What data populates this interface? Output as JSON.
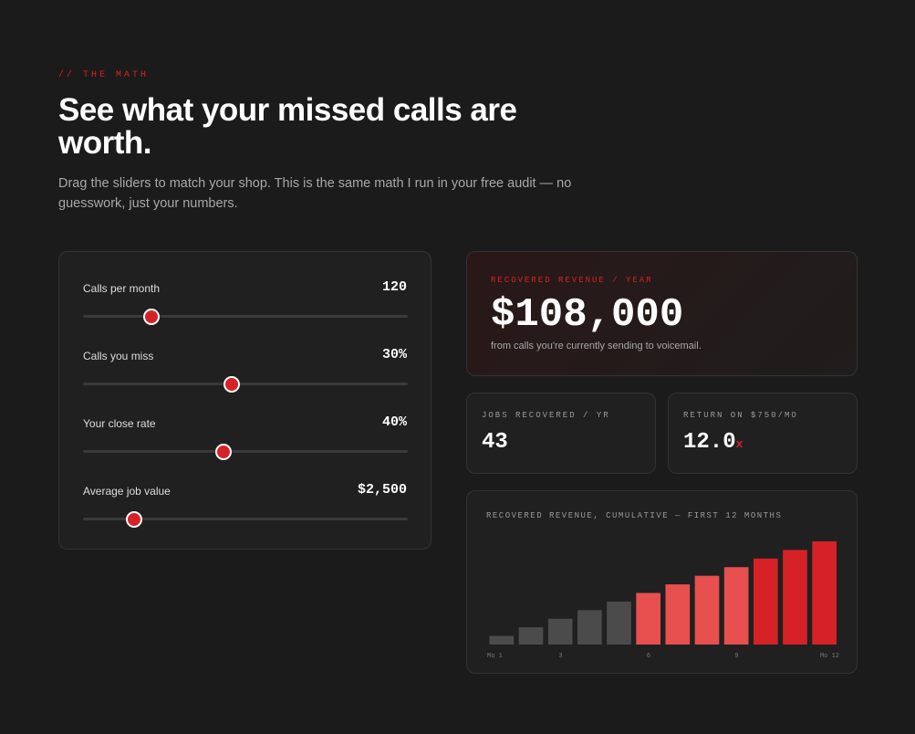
{
  "header": {
    "eyebrow": "// THE MATH",
    "title": "See what your missed calls are worth.",
    "subtitle": "Drag the sliders to match your shop. This is the same math I run in your free audit — no guesswork, just your numbers."
  },
  "sliders": [
    {
      "label": "Calls per month",
      "value": 120,
      "value_label": "120",
      "range": [
        20,
        500
      ]
    },
    {
      "label": "Calls you miss",
      "value": 30,
      "value_label": "30%",
      "range": [
        5,
        60
      ]
    },
    {
      "label": "Your close rate",
      "value": 40,
      "value_label": "40%",
      "range": [
        10,
        80
      ]
    },
    {
      "label": "Average job value",
      "value": 2500,
      "value_label": "$2,500",
      "range": [
        500,
        13500
      ]
    }
  ],
  "revenue": {
    "label": "RECOVERED REVENUE / YEAR",
    "value": "$108,000",
    "note": "from calls you're currently sending to voicemail."
  },
  "jobs": {
    "label": "JOBS RECOVERED / YR",
    "value": "43"
  },
  "roi": {
    "label": "RETURN ON $750/MO",
    "value": "12.0",
    "unit": "x"
  },
  "chart_data": {
    "type": "bar",
    "title": "RECOVERED REVENUE, CUMULATIVE — FIRST 12 MONTHS",
    "categories": [
      "Mo 1",
      null,
      "3",
      null,
      null,
      "6",
      null,
      null,
      "9",
      null,
      null,
      "Mo 12"
    ],
    "values": [
      9000,
      18000,
      27000,
      36000,
      45000,
      54000,
      63000,
      72000,
      81000,
      90000,
      99000,
      108000
    ],
    "colors": [
      "#4b4b4b",
      "#4b4b4b",
      "#4b4b4b",
      "#4b4b4b",
      "#4b4b4b",
      "#e84f4f",
      "#e84f4f",
      "#e84f4f",
      "#e84f4f",
      "#d62226",
      "#d62226",
      "#d62226"
    ],
    "ylim": [
      0,
      108000
    ]
  }
}
